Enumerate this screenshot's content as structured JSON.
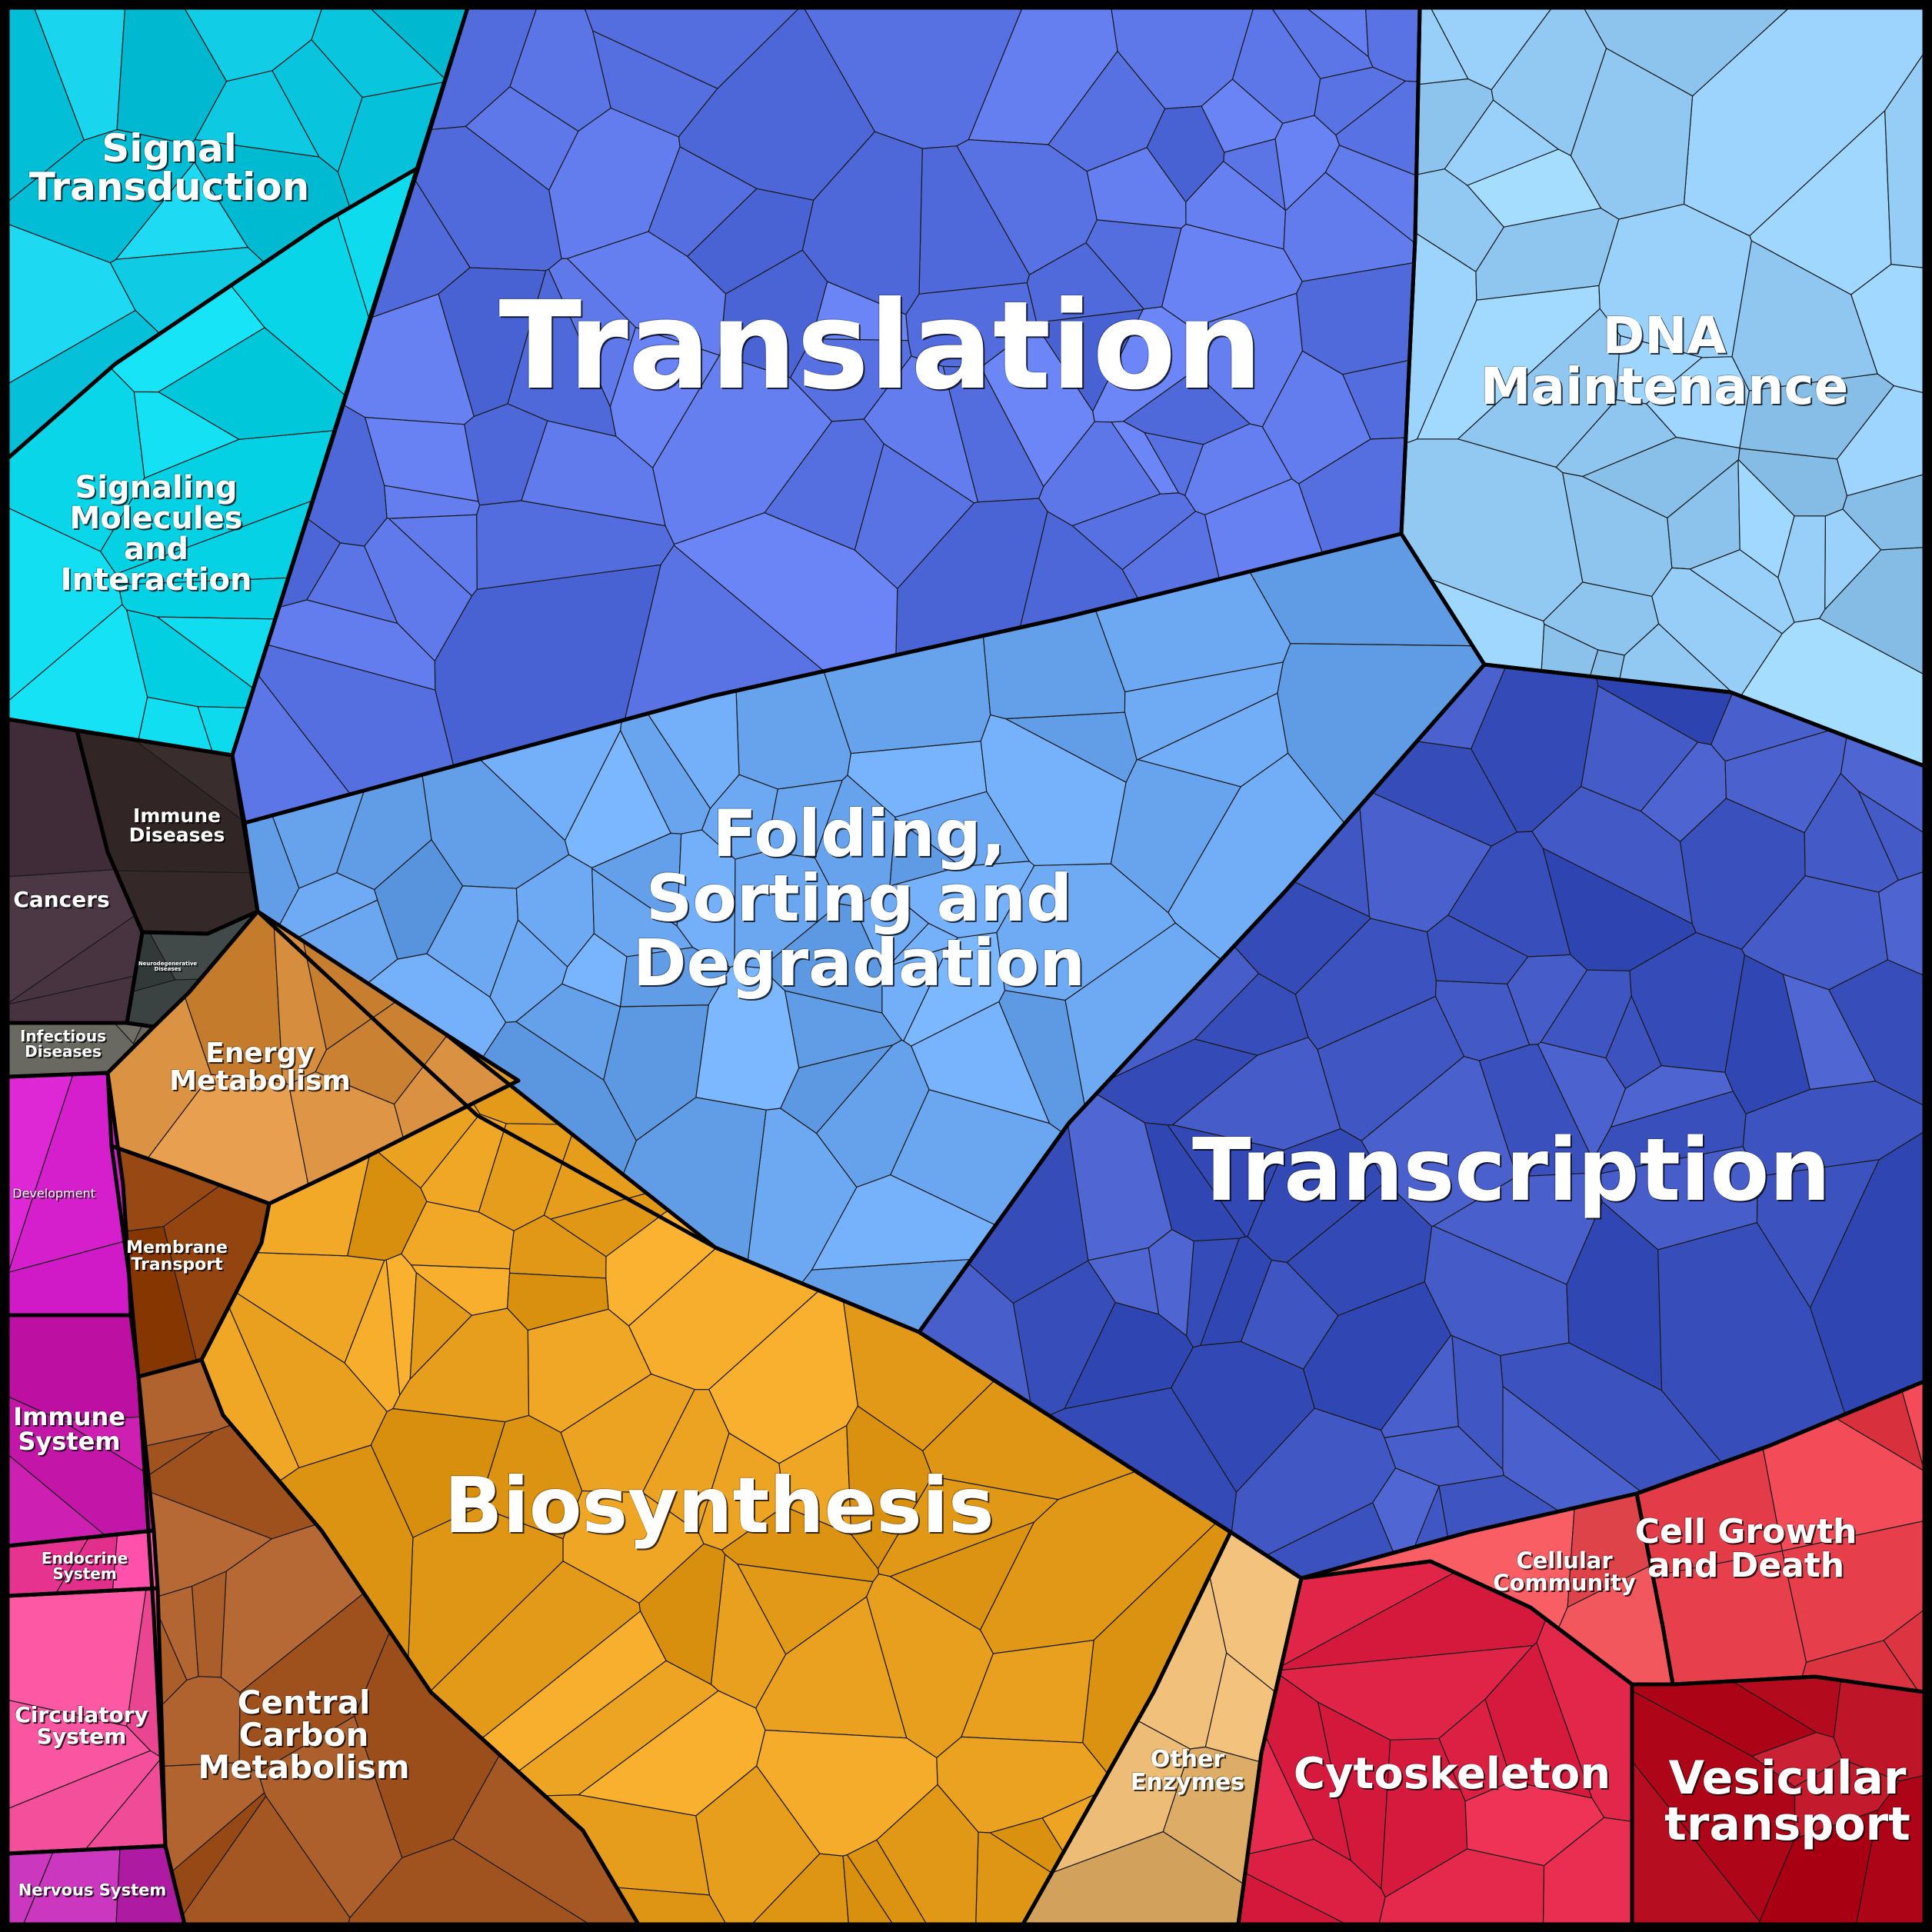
{
  "diagram": {
    "regions": [
      {
        "id": "signal",
        "label": "Signal\nTransduction",
        "color": "#0cc8e0"
      },
      {
        "id": "signaling",
        "label": "Signaling\nMolecules\nand\nInteraction",
        "color": "#0ad8ea"
      },
      {
        "id": "translation",
        "label": "Translation",
        "color": "#5a74e6"
      },
      {
        "id": "dna",
        "label": "DNA\nMaintenance",
        "color": "#94ccf6"
      },
      {
        "id": "folding",
        "label": "Folding,\nSorting and\nDegradation",
        "color": "#6aa6f0"
      },
      {
        "id": "transcription",
        "label": "Transcription",
        "color": "#3f55c2"
      },
      {
        "id": "immune-diseases",
        "label": "Immune\nDiseases",
        "color": "#3a2d2d"
      },
      {
        "id": "cancers",
        "label": "Cancers",
        "color": "#3d2a36"
      },
      {
        "id": "neuro",
        "label": "Neurodegenerative\nDiseases",
        "color": "#3c4444"
      },
      {
        "id": "infectious",
        "label": "Infectious\nDiseases",
        "color": "#6a6a62"
      },
      {
        "id": "energy",
        "label": "Energy\nMetabolism",
        "color": "#d68d3e"
      },
      {
        "id": "membrane",
        "label": "Membrane\nTransport",
        "color": "#8f3f0a"
      },
      {
        "id": "biosynthesis",
        "label": "Biosynthesis",
        "color": "#e8a01e"
      },
      {
        "id": "central-carbon",
        "label": "Central\nCarbon\nMetabolism",
        "color": "#a85a26"
      },
      {
        "id": "other-enzymes",
        "label": "Other\nEnzymes",
        "color": "#e3b26c"
      },
      {
        "id": "development",
        "label": "Development",
        "color": "#e02ad8"
      },
      {
        "id": "immune-system",
        "label": "Immune\nSystem",
        "color": "#c416a8"
      },
      {
        "id": "endocrine",
        "label": "Endocrine\nSystem",
        "color": "#f03e9a"
      },
      {
        "id": "circulatory",
        "label": "Circulatory\nSystem",
        "color": "#ee4a96"
      },
      {
        "id": "nervous",
        "label": "Nervous System",
        "color": "#c02cb4"
      },
      {
        "id": "cellular-community",
        "label": "Cellular\nCommunity",
        "color": "#f0555c"
      },
      {
        "id": "cell-growth",
        "label": "Cell Growth\nand Death",
        "color": "#e33a48"
      },
      {
        "id": "cytoskeleton",
        "label": "Cytoskeleton",
        "color": "#e2274b"
      },
      {
        "id": "vesicular",
        "label": "Vesicular\ntransport",
        "color": "#b81022"
      }
    ]
  }
}
